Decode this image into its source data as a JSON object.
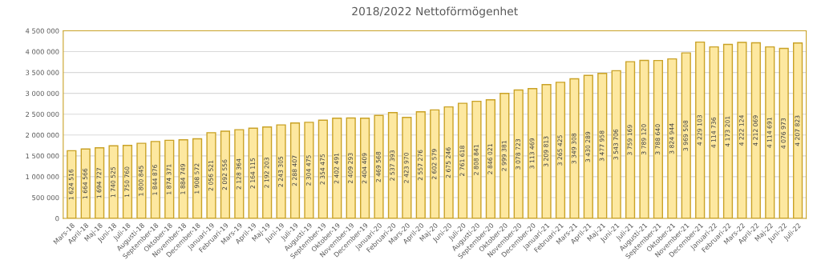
{
  "chart_data": {
    "type": "bar",
    "title": "2018/2022 Nettoförmögenhet",
    "categories": [
      "Mars-18",
      "April-18",
      "Maj-18",
      "Juni-18",
      "Juli-18",
      "Augusti-18",
      "September-18",
      "Oktober-18",
      "November-18",
      "December-18",
      "Januari-19",
      "Februari-19",
      "Mars-19",
      "April-19",
      "Maj-19",
      "Juni-19",
      "Juli-19",
      "Augusti-19",
      "September-19",
      "Oktober-19",
      "November-19",
      "December-19",
      "Januari-20",
      "Februari-20",
      "Mars-20",
      "April-20",
      "Maj-20",
      "Juni-20",
      "Juli-20",
      "Augusti-20",
      "September-20",
      "Oktober-20",
      "November-20",
      "December-20",
      "Januari-21",
      "Februari-21",
      "Mars-21",
      "April-21",
      "Maj-21",
      "Juni-21",
      "Juli-21",
      "Augusti-21",
      "September-21",
      "Oktober-21",
      "November-21",
      "December-21",
      "Januari-22",
      "Februari-22",
      "Mars-22",
      "April-22",
      "Maj-22",
      "Juni-22",
      "Juli-22"
    ],
    "values": [
      1624516,
      1664566,
      1694727,
      1740525,
      1750760,
      1800845,
      1844876,
      1874371,
      1884749,
      1908572,
      2056521,
      2092556,
      2128364,
      2164115,
      2192203,
      2243305,
      2288407,
      2304475,
      2354475,
      2402491,
      2409293,
      2404409,
      2469568,
      2537393,
      2423970,
      2557276,
      2602579,
      2675246,
      2761618,
      2808841,
      2846021,
      2999381,
      3078723,
      3113469,
      3209813,
      3265425,
      3349308,
      3430289,
      3477958,
      3543706,
      3759169,
      3789120,
      3788640,
      3824944,
      3969508,
      4229103,
      4114736,
      4173201,
      4222124,
      4212069,
      4114691,
      4076973,
      4207823
    ],
    "color": "#fde8a0",
    "ylim": [
      0,
      4500000
    ],
    "yticks": [
      {
        "value": 0,
        "label": "0"
      },
      {
        "value": 500000,
        "label": "500 000"
      },
      {
        "value": 1000000,
        "label": "1 000 000"
      },
      {
        "value": 1500000,
        "label": "1 500 000"
      },
      {
        "value": 2000000,
        "label": "2 000 000"
      },
      {
        "value": 2500000,
        "label": "2 500 000"
      },
      {
        "value": 3000000,
        "label": "3 000 000"
      },
      {
        "value": 3500000,
        "label": "3 500 000"
      },
      {
        "value": 4000000,
        "label": "4 000 000"
      },
      {
        "value": 4500000,
        "label": "4 500 000"
      }
    ],
    "grid": "y",
    "data_labels": true,
    "legend": false
  }
}
